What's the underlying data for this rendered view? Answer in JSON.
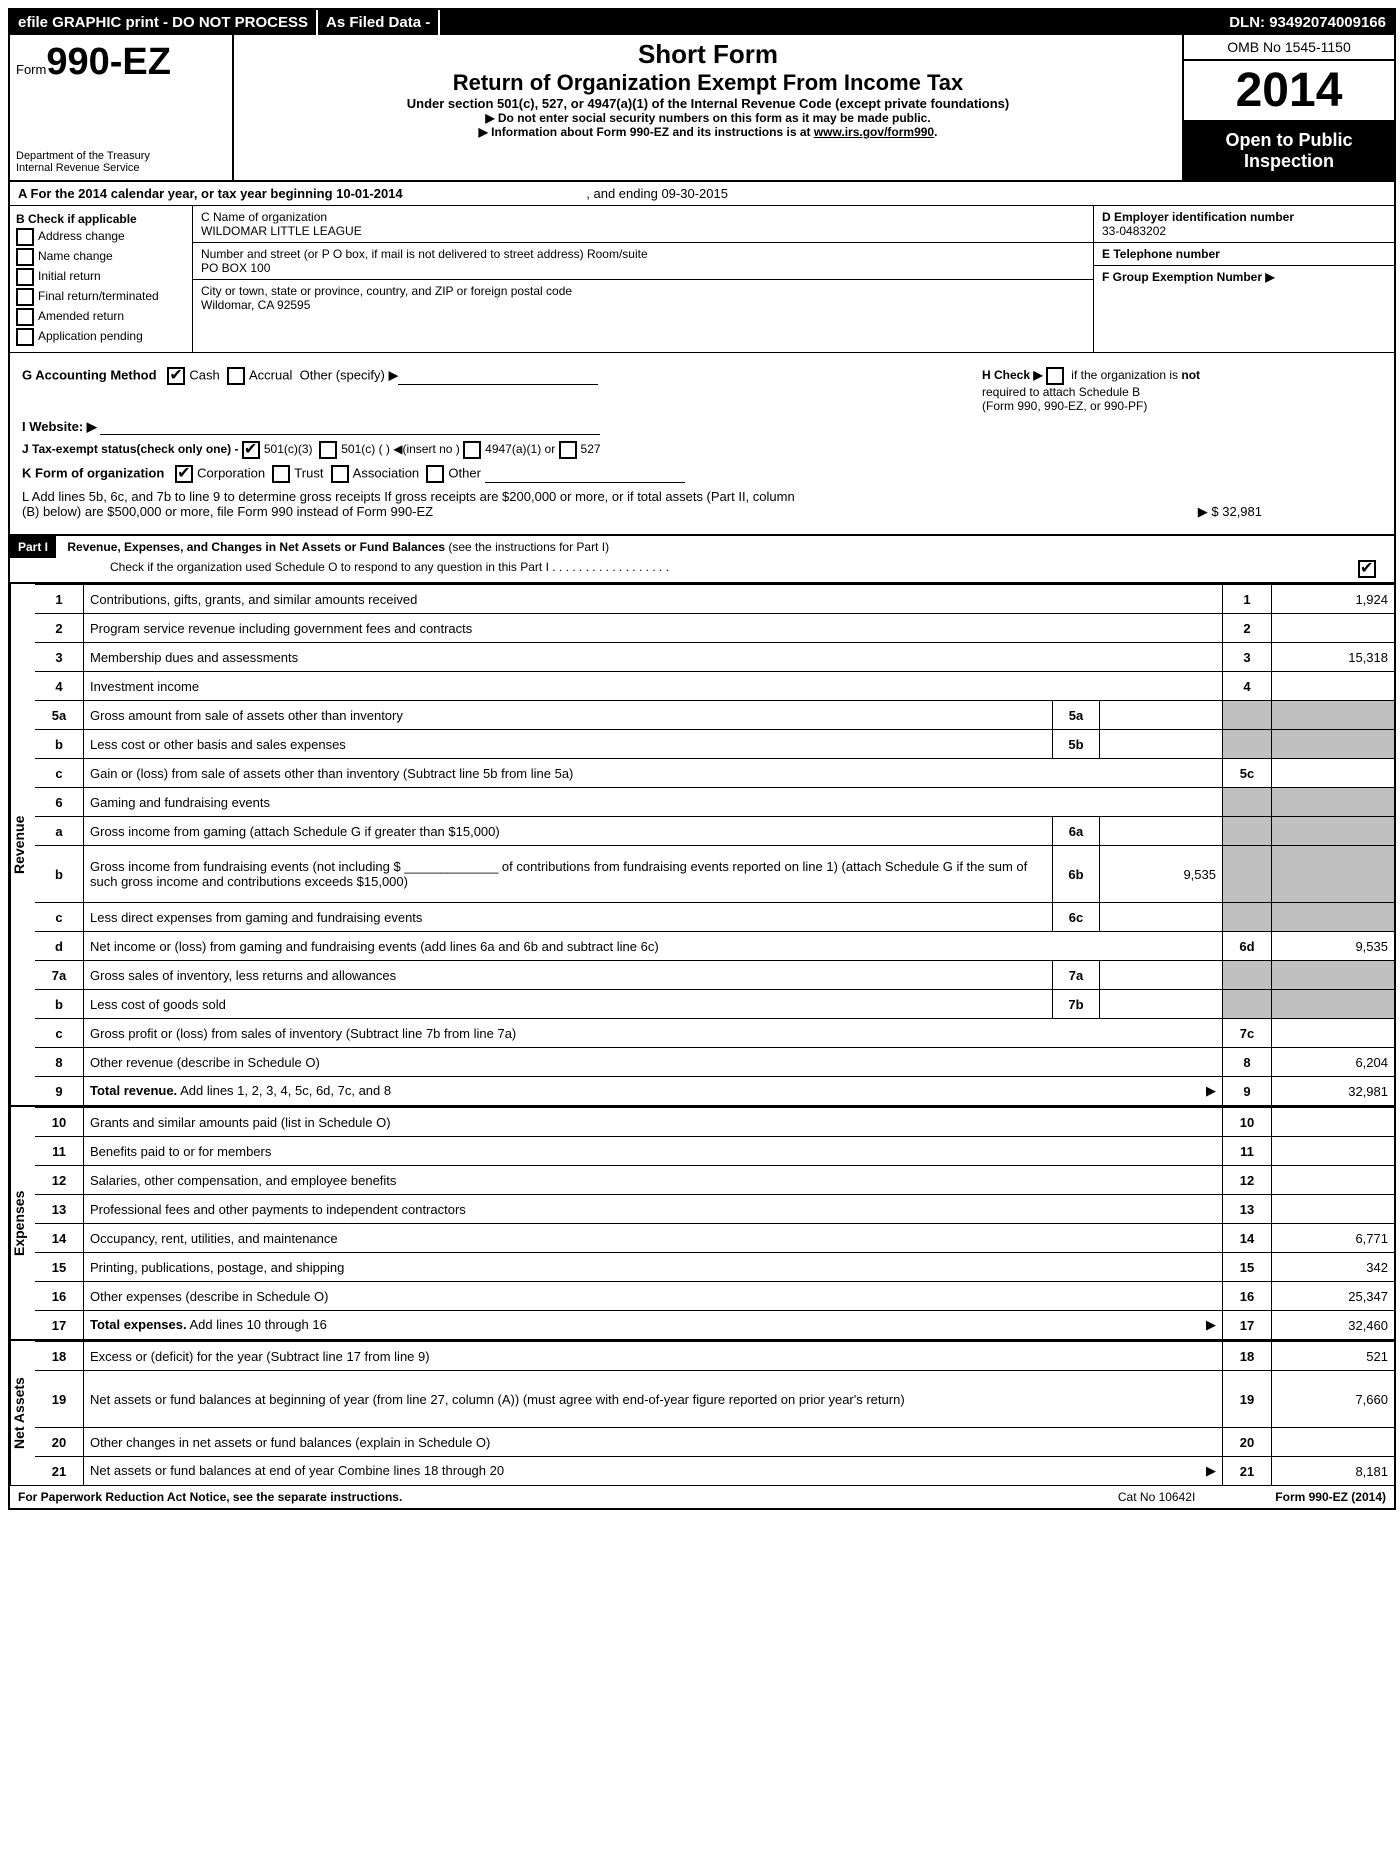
{
  "topbar": {
    "efile": "efile GRAPHIC print - DO NOT PROCESS",
    "asfiled": "As Filed Data -",
    "dln_label": "DLN:",
    "dln": "93492074009166"
  },
  "header": {
    "form_prefix": "Form",
    "form_number": "990-EZ",
    "dept1": "Department of the Treasury",
    "dept2": "Internal Revenue Service",
    "short_form": "Short Form",
    "title": "Return of Organization Exempt From Income Tax",
    "subtitle": "Under section 501(c), 527, or 4947(a)(1) of the Internal Revenue Code (except private foundations)",
    "note1": "▶ Do not enter social security numbers on this form as it may be made public.",
    "note2_a": "▶ Information about Form 990-EZ and its instructions is at ",
    "note2_link": "www.irs.gov/form990",
    "note2_b": ".",
    "omb": "OMB No 1545-1150",
    "year": "2014",
    "inspection1": "Open to Public",
    "inspection2": "Inspection"
  },
  "rowA": {
    "text_a": "A  For the 2014 calendar year, or tax year beginning 10-01-2014",
    "text_b": ", and ending 09-30-2015"
  },
  "colB": {
    "header": "B  Check if applicable",
    "items": [
      "Address change",
      "Name change",
      "Initial return",
      "Final return/terminated",
      "Amended return",
      "Application pending"
    ]
  },
  "colC": {
    "c_label": "C Name of organization",
    "c_value": "WILDOMAR LITTLE LEAGUE",
    "street_label": "Number and street (or P  O  box, if mail is not delivered to street address) Room/suite",
    "street_value": "PO BOX 100",
    "city_label": "City or town, state or province, country, and ZIP or foreign postal code",
    "city_value": "Wildomar, CA  92595"
  },
  "colDE": {
    "d_label": "D Employer identification number",
    "d_value": "33-0483202",
    "e_label": "E Telephone number",
    "f_label": "F Group Exemption Number  ▶"
  },
  "mid": {
    "g": "G Accounting Method",
    "g_cash": "Cash",
    "g_accrual": "Accrual",
    "g_other": "Other (specify) ▶",
    "h1": "H  Check ▶",
    "h2": "if the organization is",
    "h3": "not",
    "h4": "required to attach Schedule B",
    "h5": "(Form 990, 990-EZ, or 990-PF)",
    "i": "I Website: ▶",
    "j": "J Tax-exempt status(check only one) -",
    "j1": "501(c)(3)",
    "j2": "501(c) (   ) ◀(insert no )",
    "j3": "4947(a)(1) or",
    "j4": "527",
    "k": "K Form of organization",
    "k1": "Corporation",
    "k2": "Trust",
    "k3": "Association",
    "k4": "Other",
    "l1": "L Add lines 5b, 6c, and 7b to line 9 to determine gross receipts  If gross receipts are $200,000 or more, or if total assets (Part II, column",
    "l2": "(B) below) are $500,000 or more, file Form 990 instead of Form 990-EZ",
    "l_amount": "▶ $ 32,981"
  },
  "part1": {
    "label": "Part I",
    "title": "Revenue, Expenses, and Changes in Net Assets or Fund Balances",
    "title_note": "(see the instructions for Part I)",
    "check_note": "Check if the organization used Schedule O to respond to any question in this Part I  .  .  .  .  .  .  .  .  .  .  .  .  .  .  .  .  .  ."
  },
  "sections": [
    {
      "label": "Revenue",
      "rows": [
        {
          "n": "1",
          "desc": "Contributions, gifts, grants, and similar amounts received",
          "ln": "1",
          "amt": "1,924"
        },
        {
          "n": "2",
          "desc": "Program service revenue including government fees and contracts",
          "ln": "2",
          "amt": ""
        },
        {
          "n": "3",
          "desc": "Membership dues and assessments",
          "ln": "3",
          "amt": "15,318"
        },
        {
          "n": "4",
          "desc": "Investment income",
          "ln": "4",
          "amt": ""
        },
        {
          "n": "5a",
          "desc": "Gross amount from sale of assets other than inventory",
          "sub": "5a",
          "subamt": "",
          "shadedAmt": true
        },
        {
          "n": "b",
          "desc": "Less  cost or other basis and sales expenses",
          "sub": "5b",
          "subamt": "",
          "shadedAmt": true
        },
        {
          "n": "c",
          "desc": "Gain or (loss) from sale of assets other than inventory (Subtract line 5b from line 5a)",
          "ln": "5c",
          "amt": ""
        },
        {
          "n": "6",
          "desc": "Gaming and fundraising events",
          "shadedAll": true
        },
        {
          "n": "a",
          "desc": "Gross income from gaming (attach Schedule G if greater than $15,000)",
          "sub": "6a",
          "subamt": "",
          "shadedAmt": true
        },
        {
          "n": "b",
          "desc": "Gross income from fundraising events (not including $ _____________ of contributions from fundraising events reported on line 1) (attach Schedule G if the sum of such gross income and contributions exceeds $15,000)",
          "sub": "6b",
          "subamt": "9,535",
          "shadedAmt": true,
          "tall": true
        },
        {
          "n": "c",
          "desc": "Less  direct expenses from gaming and fundraising events",
          "sub": "6c",
          "subamt": "",
          "shadedAmt": true
        },
        {
          "n": "d",
          "desc": "Net income or (loss) from gaming and fundraising events (add lines 6a and 6b and subtract line 6c)",
          "ln": "6d",
          "amt": "9,535"
        },
        {
          "n": "7a",
          "desc": "Gross sales of inventory, less returns and allowances",
          "sub": "7a",
          "subamt": "",
          "shadedAmt": true
        },
        {
          "n": "b",
          "desc": "Less  cost of goods sold",
          "sub": "7b",
          "subamt": "",
          "shadedAmt": true
        },
        {
          "n": "c",
          "desc": "Gross profit or (loss) from sales of inventory (Subtract line 7b from line 7a)",
          "ln": "7c",
          "amt": ""
        },
        {
          "n": "8",
          "desc": "Other revenue (describe in Schedule O)",
          "ln": "8",
          "amt": "6,204"
        },
        {
          "n": "9",
          "desc": "Total revenue. Add lines 1, 2, 3, 4, 5c, 6d, 7c, and 8",
          "ln": "9",
          "amt": "32,981",
          "bold": true,
          "arrow": true
        }
      ]
    },
    {
      "label": "Expenses",
      "rows": [
        {
          "n": "10",
          "desc": "Grants and similar amounts paid (list in Schedule O)",
          "ln": "10",
          "amt": ""
        },
        {
          "n": "11",
          "desc": "Benefits paid to or for members",
          "ln": "11",
          "amt": ""
        },
        {
          "n": "12",
          "desc": "Salaries, other compensation, and employee benefits",
          "ln": "12",
          "amt": ""
        },
        {
          "n": "13",
          "desc": "Professional fees and other payments to independent contractors",
          "ln": "13",
          "amt": ""
        },
        {
          "n": "14",
          "desc": "Occupancy, rent, utilities, and maintenance",
          "ln": "14",
          "amt": "6,771"
        },
        {
          "n": "15",
          "desc": "Printing, publications, postage, and shipping",
          "ln": "15",
          "amt": "342"
        },
        {
          "n": "16",
          "desc": "Other expenses (describe in Schedule O)",
          "ln": "16",
          "amt": "25,347"
        },
        {
          "n": "17",
          "desc": "Total expenses. Add lines 10 through 16",
          "ln": "17",
          "amt": "32,460",
          "bold": true,
          "arrow": true
        }
      ]
    },
    {
      "label": "Net Assets",
      "rows": [
        {
          "n": "18",
          "desc": "Excess or (deficit) for the year (Subtract line 17 from line 9)",
          "ln": "18",
          "amt": "521"
        },
        {
          "n": "19",
          "desc": "Net assets or fund balances at beginning of year (from line 27, column (A)) (must agree with end-of-year figure reported on prior year's return)",
          "ln": "19",
          "amt": "7,660",
          "tall": true
        },
        {
          "n": "20",
          "desc": "Other changes in net assets or fund balances (explain in Schedule O)",
          "ln": "20",
          "amt": ""
        },
        {
          "n": "21",
          "desc": "Net assets or fund balances at end of year  Combine lines 18 through 20",
          "ln": "21",
          "amt": "8,181",
          "arrow": true
        }
      ]
    }
  ],
  "footer": {
    "left": "For Paperwork Reduction Act Notice, see the separate instructions.",
    "center": "Cat No 10642I",
    "right": "Form 990-EZ (2014)"
  }
}
